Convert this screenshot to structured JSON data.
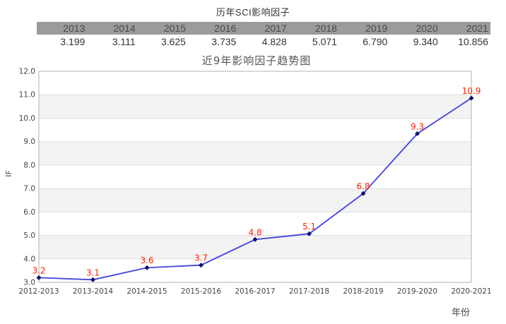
{
  "page": {
    "title": "历年SCI影响因子"
  },
  "table": {
    "header_bg": "#9b9b9b",
    "years": [
      "2013",
      "2014",
      "2015",
      "2016",
      "2017",
      "2018",
      "2019",
      "2020",
      "2021"
    ],
    "values": [
      "3.199",
      "3.111",
      "3.625",
      "3.735",
      "4.828",
      "5.071",
      "6.790",
      "9.340",
      "10.856"
    ]
  },
  "chart_data": {
    "type": "line",
    "title": "近9年影响因子趋势图",
    "xlabel": "年份",
    "ylabel": "IF",
    "categories": [
      "2012-2013",
      "2013-2014",
      "2014-2015",
      "2015-2016",
      "2016-2017",
      "2017-2018",
      "2018-2019",
      "2019-2020",
      "2020-2021"
    ],
    "values": [
      3.199,
      3.111,
      3.625,
      3.735,
      4.828,
      5.071,
      6.79,
      9.34,
      10.856
    ],
    "point_labels": [
      "3.2",
      "3.1",
      "3.6",
      "3.7",
      "4.8",
      "5.1",
      "6.8",
      "9.3",
      "10.9"
    ],
    "ylim": [
      3.0,
      12.0
    ],
    "ytick_step": 1.0,
    "grid": true,
    "legend": "none",
    "line_color": "#4343dd",
    "marker_color": "#10106e",
    "label_color": "#ff2200",
    "band_color": "#f3f3f3",
    "grid_color": "#dddddd",
    "border_color": "#b0b0b0",
    "tick_color": "#444444",
    "title_color": "#555555"
  }
}
